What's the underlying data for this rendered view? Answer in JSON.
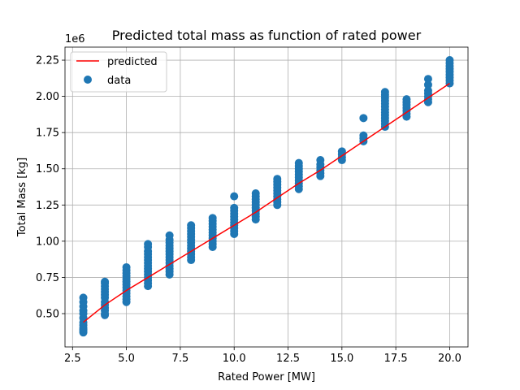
{
  "chart_data": {
    "type": "scatter",
    "title": "Predicted total mass as function of rated power",
    "xlabel": "Rated Power [MW]",
    "ylabel": "Total Mass [kg]",
    "offset_label": "1e6",
    "xlim": [
      2.15,
      20.85
    ],
    "ylim": [
      0.27,
      2.34
    ],
    "xticks": [
      2.5,
      5.0,
      7.5,
      10.0,
      12.5,
      15.0,
      17.5,
      20.0
    ],
    "xtick_labels": [
      "2.5",
      "5.0",
      "7.5",
      "10.0",
      "12.5",
      "15.0",
      "17.5",
      "20.0"
    ],
    "yticks": [
      0.5,
      0.75,
      1.0,
      1.25,
      1.5,
      1.75,
      2.0,
      2.25
    ],
    "ytick_labels": [
      "0.50",
      "0.75",
      "1.00",
      "1.25",
      "1.50",
      "1.75",
      "2.00",
      "2.25"
    ],
    "grid": true,
    "legend_position": "top-left",
    "colors": {
      "predicted": "#ff0000",
      "data": "#1f77b4",
      "grid": "#b0b0b0"
    },
    "series": [
      {
        "name": "predicted",
        "kind": "line",
        "x": [
          3,
          4,
          5,
          6,
          7,
          8,
          9,
          10,
          11,
          12,
          13,
          14,
          15,
          16,
          17,
          18,
          19,
          20
        ],
        "y": [
          0.44,
          0.56,
          0.66,
          0.75,
          0.84,
          0.93,
          1.02,
          1.11,
          1.2,
          1.3,
          1.4,
          1.49,
          1.59,
          1.69,
          1.79,
          1.89,
          1.99,
          2.09
        ]
      },
      {
        "name": "data",
        "kind": "scatter",
        "points": [
          [
            3,
            0.37
          ],
          [
            3,
            0.38
          ],
          [
            3,
            0.39
          ],
          [
            3,
            0.4
          ],
          [
            3,
            0.42
          ],
          [
            3,
            0.44
          ],
          [
            3,
            0.47
          ],
          [
            3,
            0.5
          ],
          [
            3,
            0.52
          ],
          [
            3,
            0.55
          ],
          [
            3,
            0.58
          ],
          [
            3,
            0.61
          ],
          [
            4,
            0.49
          ],
          [
            4,
            0.5
          ],
          [
            4,
            0.52
          ],
          [
            4,
            0.54
          ],
          [
            4,
            0.56
          ],
          [
            4,
            0.58
          ],
          [
            4,
            0.61
          ],
          [
            4,
            0.63
          ],
          [
            4,
            0.65
          ],
          [
            4,
            0.67
          ],
          [
            4,
            0.69
          ],
          [
            4,
            0.71
          ],
          [
            4,
            0.72
          ],
          [
            5,
            0.58
          ],
          [
            5,
            0.6
          ],
          [
            5,
            0.62
          ],
          [
            5,
            0.64
          ],
          [
            5,
            0.66
          ],
          [
            5,
            0.68
          ],
          [
            5,
            0.7
          ],
          [
            5,
            0.72
          ],
          [
            5,
            0.74
          ],
          [
            5,
            0.76
          ],
          [
            5,
            0.78
          ],
          [
            5,
            0.8
          ],
          [
            5,
            0.82
          ],
          [
            6,
            0.69
          ],
          [
            6,
            0.71
          ],
          [
            6,
            0.73
          ],
          [
            6,
            0.75
          ],
          [
            6,
            0.77
          ],
          [
            6,
            0.79
          ],
          [
            6,
            0.81
          ],
          [
            6,
            0.83
          ],
          [
            6,
            0.85
          ],
          [
            6,
            0.87
          ],
          [
            6,
            0.89
          ],
          [
            6,
            0.91
          ],
          [
            6,
            0.93
          ],
          [
            6,
            0.96
          ],
          [
            6,
            0.98
          ],
          [
            7,
            0.77
          ],
          [
            7,
            0.79
          ],
          [
            7,
            0.81
          ],
          [
            7,
            0.83
          ],
          [
            7,
            0.85
          ],
          [
            7,
            0.87
          ],
          [
            7,
            0.89
          ],
          [
            7,
            0.91
          ],
          [
            7,
            0.93
          ],
          [
            7,
            0.95
          ],
          [
            7,
            0.97
          ],
          [
            7,
            0.99
          ],
          [
            7,
            1.01
          ],
          [
            7,
            1.04
          ],
          [
            8,
            0.87
          ],
          [
            8,
            0.89
          ],
          [
            8,
            0.91
          ],
          [
            8,
            0.93
          ],
          [
            8,
            0.95
          ],
          [
            8,
            0.97
          ],
          [
            8,
            0.99
          ],
          [
            8,
            1.01
          ],
          [
            8,
            1.03
          ],
          [
            8,
            1.05
          ],
          [
            8,
            1.07
          ],
          [
            8,
            1.09
          ],
          [
            8,
            1.11
          ],
          [
            9,
            0.96
          ],
          [
            9,
            0.98
          ],
          [
            9,
            1.0
          ],
          [
            9,
            1.02
          ],
          [
            9,
            1.04
          ],
          [
            9,
            1.06
          ],
          [
            9,
            1.08
          ],
          [
            9,
            1.1
          ],
          [
            9,
            1.12
          ],
          [
            9,
            1.14
          ],
          [
            9,
            1.16
          ],
          [
            10,
            1.05
          ],
          [
            10,
            1.07
          ],
          [
            10,
            1.09
          ],
          [
            10,
            1.11
          ],
          [
            10,
            1.13
          ],
          [
            10,
            1.15
          ],
          [
            10,
            1.17
          ],
          [
            10,
            1.19
          ],
          [
            10,
            1.21
          ],
          [
            10,
            1.23
          ],
          [
            10,
            1.31
          ],
          [
            11,
            1.15
          ],
          [
            11,
            1.17
          ],
          [
            11,
            1.19
          ],
          [
            11,
            1.21
          ],
          [
            11,
            1.23
          ],
          [
            11,
            1.25
          ],
          [
            11,
            1.27
          ],
          [
            11,
            1.29
          ],
          [
            11,
            1.31
          ],
          [
            11,
            1.33
          ],
          [
            12,
            1.25
          ],
          [
            12,
            1.27
          ],
          [
            12,
            1.29
          ],
          [
            12,
            1.31
          ],
          [
            12,
            1.33
          ],
          [
            12,
            1.35
          ],
          [
            12,
            1.37
          ],
          [
            12,
            1.39
          ],
          [
            12,
            1.41
          ],
          [
            12,
            1.43
          ],
          [
            13,
            1.36
          ],
          [
            13,
            1.38
          ],
          [
            13,
            1.4
          ],
          [
            13,
            1.42
          ],
          [
            13,
            1.44
          ],
          [
            13,
            1.46
          ],
          [
            13,
            1.48
          ],
          [
            13,
            1.5
          ],
          [
            13,
            1.52
          ],
          [
            13,
            1.54
          ],
          [
            14,
            1.45
          ],
          [
            14,
            1.47
          ],
          [
            14,
            1.49
          ],
          [
            14,
            1.51
          ],
          [
            14,
            1.53
          ],
          [
            14,
            1.56
          ],
          [
            15,
            1.56
          ],
          [
            15,
            1.58
          ],
          [
            15,
            1.6
          ],
          [
            15,
            1.62
          ],
          [
            16,
            1.69
          ],
          [
            16,
            1.71
          ],
          [
            16,
            1.73
          ],
          [
            16,
            1.85
          ],
          [
            17,
            1.79
          ],
          [
            17,
            1.81
          ],
          [
            17,
            1.83
          ],
          [
            17,
            1.85
          ],
          [
            17,
            1.87
          ],
          [
            17,
            1.89
          ],
          [
            17,
            1.91
          ],
          [
            17,
            1.93
          ],
          [
            17,
            1.95
          ],
          [
            17,
            1.97
          ],
          [
            17,
            1.99
          ],
          [
            17,
            2.01
          ],
          [
            17,
            2.03
          ],
          [
            18,
            1.86
          ],
          [
            18,
            1.88
          ],
          [
            18,
            1.9
          ],
          [
            18,
            1.92
          ],
          [
            18,
            1.94
          ],
          [
            18,
            1.96
          ],
          [
            18,
            1.98
          ],
          [
            19,
            1.96
          ],
          [
            19,
            1.98
          ],
          [
            19,
            2.0
          ],
          [
            19,
            2.02
          ],
          [
            19,
            2.04
          ],
          [
            19,
            2.08
          ],
          [
            19,
            2.12
          ],
          [
            20,
            2.09
          ],
          [
            20,
            2.11
          ],
          [
            20,
            2.13
          ],
          [
            20,
            2.15
          ],
          [
            20,
            2.17
          ],
          [
            20,
            2.19
          ],
          [
            20,
            2.21
          ],
          [
            20,
            2.23
          ],
          [
            20,
            2.25
          ]
        ]
      }
    ]
  }
}
